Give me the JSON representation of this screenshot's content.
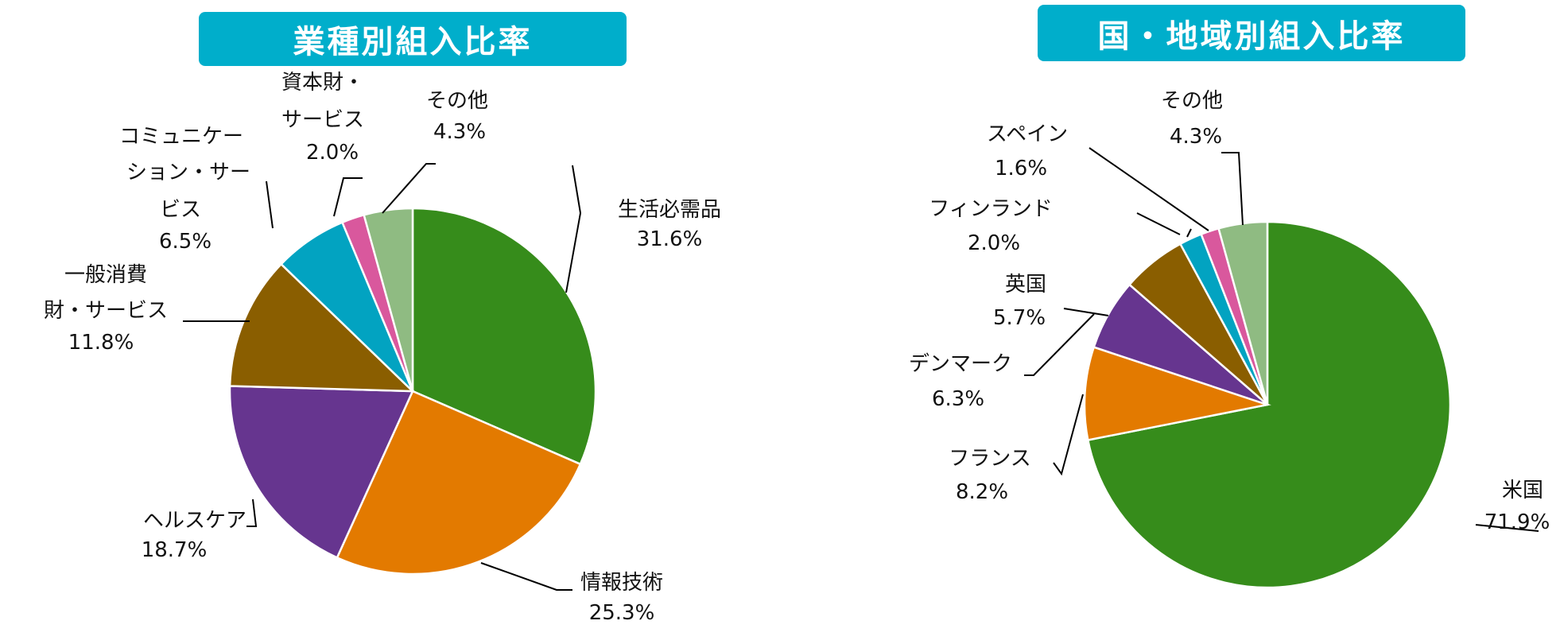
{
  "chart_data": [
    {
      "type": "pie",
      "title": "業種別組入比率",
      "unit": "%",
      "slices": [
        {
          "label": "生活必需品",
          "value": 31.6,
          "value_text": "31.6%",
          "color": "#368c1b"
        },
        {
          "label": "情報技術",
          "value": 25.3,
          "value_text": "25.3%",
          "color": "#e37a00"
        },
        {
          "label": "ヘルスケア",
          "value": 18.7,
          "value_text": "18.7%",
          "color": "#66358f"
        },
        {
          "label": "一般消費財・サービス",
          "value": 11.8,
          "value_text": "11.8%",
          "color": "#8a5e00"
        },
        {
          "label": "コミュニケーション・サービス",
          "value": 6.5,
          "value_text": "6.5%",
          "color": "#02a3c1"
        },
        {
          "label": "資本財・サービス",
          "value": 2.0,
          "value_text": "2.0%",
          "color": "#d9589d"
        },
        {
          "label": "その他",
          "value": 4.3,
          "value_text": "4.3%",
          "color": "#8fbb82"
        }
      ]
    },
    {
      "type": "pie",
      "title": "国・地域別組入比率",
      "unit": "%",
      "slices": [
        {
          "label": "米国",
          "value": 71.9,
          "value_text": "71.9%",
          "color": "#368c1b"
        },
        {
          "label": "フランス",
          "value": 8.2,
          "value_text": "8.2%",
          "color": "#e37a00"
        },
        {
          "label": "デンマーク",
          "value": 6.3,
          "value_text": "6.3%",
          "color": "#66358f"
        },
        {
          "label": "英国",
          "value": 5.7,
          "value_text": "5.7%",
          "color": "#8a5e00"
        },
        {
          "label": "フィンランド",
          "value": 2.0,
          "value_text": "2.0%",
          "color": "#02a3c1"
        },
        {
          "label": "スペイン",
          "value": 1.6,
          "value_text": "1.6%",
          "color": "#d9589d"
        },
        {
          "label": "その他",
          "value": 4.3,
          "value_text": "4.3%",
          "color": "#8fbb82"
        }
      ]
    }
  ]
}
